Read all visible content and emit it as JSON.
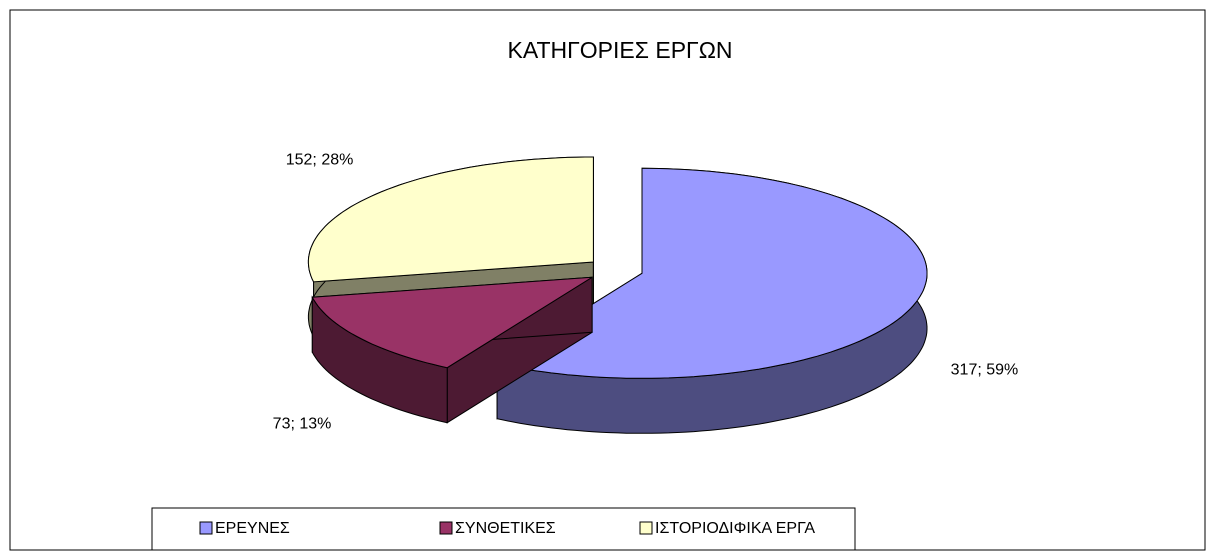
{
  "chart_data": {
    "type": "pie3d",
    "title": "ΚΑΤΗΓΟΡΙΕΣ ΕΡΓΩΝ",
    "categories": [
      "ΕΡΕΥΝΕΣ",
      "ΣΥΝΘΕΤΙΚΕΣ",
      "ΙΣΤΟΡΙΟΔΙΦΙΚΑ ΕΡΓΑ"
    ],
    "values": [
      317,
      73,
      152
    ],
    "value_labels": [
      "317; 59%",
      "73; 13%",
      "152; 28%"
    ],
    "colors": [
      "#9999ff",
      "#993366",
      "#ffffcc"
    ],
    "legend": "bottom"
  }
}
